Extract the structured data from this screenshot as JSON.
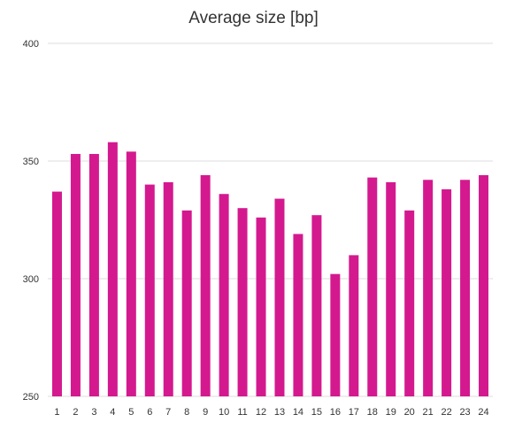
{
  "chart_data": {
    "type": "bar",
    "title": "Average size [bp]",
    "xlabel": "",
    "ylabel": "",
    "categories": [
      "1",
      "2",
      "3",
      "4",
      "5",
      "6",
      "7",
      "8",
      "9",
      "10",
      "11",
      "12",
      "13",
      "14",
      "15",
      "16",
      "17",
      "18",
      "19",
      "20",
      "21",
      "22",
      "23",
      "24"
    ],
    "values": [
      337,
      353,
      353,
      358,
      354,
      340,
      341,
      329,
      344,
      336,
      330,
      326,
      334,
      319,
      327,
      302,
      310,
      343,
      341,
      329,
      342,
      338,
      342,
      344
    ],
    "ylim": [
      250,
      400
    ],
    "yticks": [
      "400",
      "350",
      "300",
      "250"
    ],
    "grid": true,
    "bar_color": "#d4198f",
    "grid_color": "#dddddd"
  }
}
